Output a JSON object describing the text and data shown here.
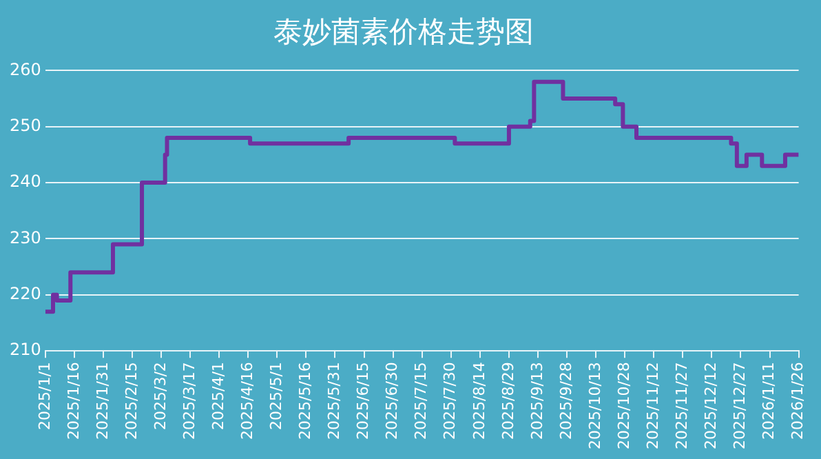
{
  "chart_data": {
    "type": "step",
    "title": "泰妙菌素价格走势图",
    "x": [
      "2025-01-01",
      "2025-01-05",
      "2025-01-07",
      "2025-01-14",
      "2025-02-05",
      "2025-02-20",
      "2025-03-04",
      "2025-03-05",
      "2025-04-17",
      "2025-06-07",
      "2025-08-01",
      "2025-08-29",
      "2025-09-09",
      "2025-09-11",
      "2025-09-26",
      "2025-10-23",
      "2025-10-27",
      "2025-11-03",
      "2025-12-22",
      "2025-12-25",
      "2025-12-30",
      "2026-01-07",
      "2026-01-19",
      "2026-01-26"
    ],
    "series": [
      {
        "color": "#7030a0",
        "values": [
          217,
          220,
          219,
          224,
          229,
          240,
          245,
          248,
          247,
          248,
          247,
          250,
          251,
          258,
          255,
          254,
          250,
          248,
          247,
          243,
          245,
          243,
          245,
          245
        ]
      }
    ],
    "xlim": [
      "2025-01-01",
      "2026-01-26"
    ],
    "xticks": [
      {
        "value": "2025-01-01",
        "label": "2025/1/1"
      },
      {
        "value": "2025-01-16",
        "label": "2025/1/16"
      },
      {
        "value": "2025-01-31",
        "label": "2025/1/31"
      },
      {
        "value": "2025-02-15",
        "label": "2025/2/15"
      },
      {
        "value": "2025-03-02",
        "label": "2025/3/2"
      },
      {
        "value": "2025-03-17",
        "label": "2025/3/17"
      },
      {
        "value": "2025-04-01",
        "label": "2025/4/1"
      },
      {
        "value": "2025-04-16",
        "label": "2025/4/16"
      },
      {
        "value": "2025-05-01",
        "label": "2025/5/1"
      },
      {
        "value": "2025-05-16",
        "label": "2025/5/16"
      },
      {
        "value": "2025-05-31",
        "label": "2025/5/31"
      },
      {
        "value": "2025-06-15",
        "label": "2025/6/15"
      },
      {
        "value": "2025-06-30",
        "label": "2025/6/30"
      },
      {
        "value": "2025-07-15",
        "label": "2025/7/15"
      },
      {
        "value": "2025-07-30",
        "label": "2025/7/30"
      },
      {
        "value": "2025-08-14",
        "label": "2025/8/14"
      },
      {
        "value": "2025-08-29",
        "label": "2025/8/29"
      },
      {
        "value": "2025-09-13",
        "label": "2025/9/13"
      },
      {
        "value": "2025-09-28",
        "label": "2025/9/28"
      },
      {
        "value": "2025-10-13",
        "label": "2025/10/13"
      },
      {
        "value": "2025-10-28",
        "label": "2025/10/28"
      },
      {
        "value": "2025-11-12",
        "label": "2025/11/12"
      },
      {
        "value": "2025-11-27",
        "label": "2025/11/27"
      },
      {
        "value": "2025-12-12",
        "label": "2025/12/12"
      },
      {
        "value": "2025-12-27",
        "label": "2025/12/27"
      },
      {
        "value": "2026-01-11",
        "label": "2026/1/11"
      },
      {
        "value": "2026-01-26",
        "label": "2026/1/26"
      }
    ],
    "ylim": [
      210,
      260
    ],
    "yticks": [
      210,
      220,
      230,
      240,
      250,
      260
    ],
    "grid": "y",
    "legend": false,
    "marker": "none",
    "line_style": "solid"
  }
}
